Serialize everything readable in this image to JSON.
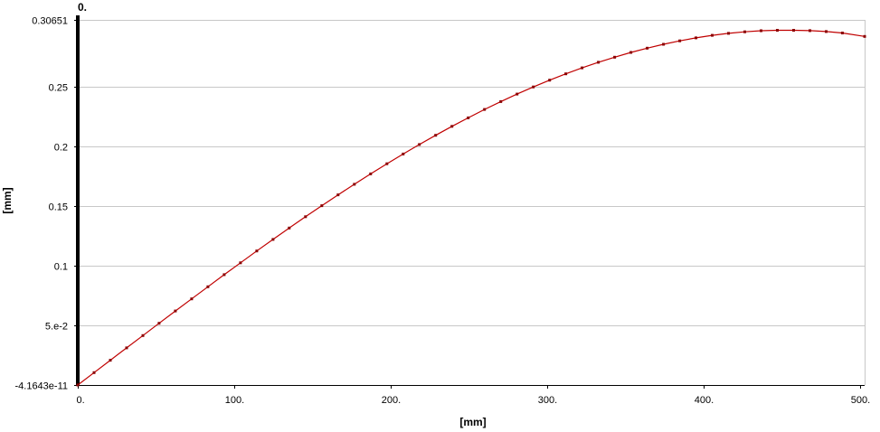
{
  "chart_data": {
    "type": "line",
    "title": "",
    "xlabel": "[mm]",
    "ylabel": "[mm]",
    "top_marker": "0.",
    "xlim": [
      0,
      503
    ],
    "ylim": [
      -4.1643e-11,
      0.30651
    ],
    "x_ticks": [
      {
        "value": 0,
        "label": "0."
      },
      {
        "value": 100,
        "label": "100."
      },
      {
        "value": 200,
        "label": "200."
      },
      {
        "value": 300,
        "label": "300."
      },
      {
        "value": 400,
        "label": "400."
      },
      {
        "value": 500,
        "label": "500."
      }
    ],
    "y_ticks": [
      {
        "value": -4.1643e-11,
        "label": "-4.1643e-11"
      },
      {
        "value": 0.05,
        "label": "5.e-2"
      },
      {
        "value": 0.1,
        "label": "0.1"
      },
      {
        "value": 0.15,
        "label": "0.15"
      },
      {
        "value": 0.2,
        "label": "0.2"
      },
      {
        "value": 0.25,
        "label": "0.25"
      },
      {
        "value": 0.30651,
        "label": "0.30651"
      }
    ],
    "grid": "horizontal",
    "line_color": "#c00000",
    "marker_color": "#8b0000",
    "series": [
      {
        "x": [
          0,
          10.4,
          20.8,
          31.2,
          41.6,
          52.0,
          62.4,
          72.8,
          83.2,
          93.6,
          104.0,
          114.4,
          124.8,
          135.2,
          145.6,
          156.0,
          166.4,
          176.8,
          187.2,
          197.6,
          208.0,
          218.4,
          228.8,
          239.2,
          249.6,
          260.0,
          270.4,
          280.8,
          291.2,
          301.6,
          312.0,
          322.4,
          332.8,
          343.2,
          353.6,
          364.0,
          374.4,
          384.8,
          395.2,
          405.6,
          416.0,
          426.4,
          436.8,
          447.2,
          457.6,
          468.0,
          478.4,
          488.8,
          503.0
        ],
        "y": [
          0,
          0.0104,
          0.0208,
          0.0312,
          0.0415,
          0.0518,
          0.0621,
          0.0723,
          0.0825,
          0.0926,
          0.1026,
          0.1125,
          0.1222,
          0.1318,
          0.1413,
          0.1505,
          0.1596,
          0.1685,
          0.1772,
          0.1857,
          0.1939,
          0.2019,
          0.2096,
          0.2171,
          0.2243,
          0.2313,
          0.2379,
          0.2442,
          0.2502,
          0.2559,
          0.2612,
          0.2662,
          0.2709,
          0.2752,
          0.2792,
          0.2828,
          0.286,
          0.2889,
          0.2914,
          0.2935,
          0.2952,
          0.2965,
          0.2974,
          0.2978,
          0.2978,
          0.2975,
          0.2967,
          0.2955,
          0.2926
        ]
      }
    ]
  }
}
